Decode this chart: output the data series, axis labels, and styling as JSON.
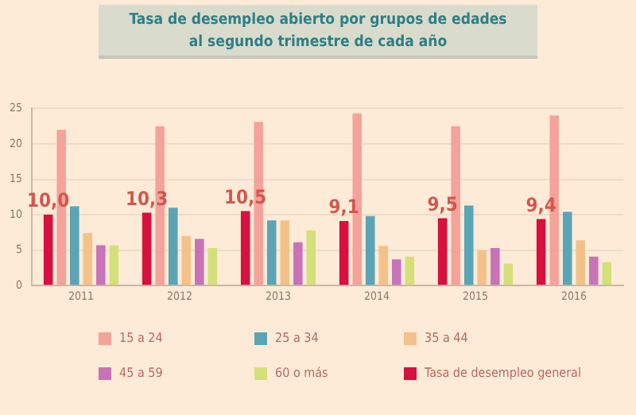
{
  "chart_data": {
    "type": "bar",
    "title": "Tasa de desempleo abierto por grupos de edades\nal segundo trimestre de cada año",
    "categories": [
      "2011",
      "2012",
      "2013",
      "2014",
      "2015",
      "2016"
    ],
    "series": [
      {
        "name": "Tasa de desempleo general",
        "color": "#d6103f",
        "values": [
          10.0,
          10.3,
          10.5,
          9.1,
          9.5,
          9.4
        ],
        "value_labels": [
          "10,0",
          "10,3",
          "10,5",
          "9,1",
          "9,5",
          "9,4"
        ]
      },
      {
        "name": "15 a 24",
        "color": "#f4a39a",
        "values": [
          22.0,
          22.5,
          23.1,
          24.3,
          22.5,
          24.0
        ]
      },
      {
        "name": "25 a 34",
        "color": "#5aa5b5",
        "values": [
          11.2,
          11.0,
          9.2,
          9.8,
          11.3,
          10.4
        ]
      },
      {
        "name": "35 a 44",
        "color": "#f2c28a",
        "values": [
          7.4,
          7.0,
          9.2,
          5.6,
          5.0,
          6.4
        ]
      },
      {
        "name": "45 a 59",
        "color": "#c873b8",
        "values": [
          5.7,
          6.6,
          6.1,
          3.7,
          5.3,
          4.1
        ]
      },
      {
        "name": "60 o más",
        "color": "#d4e07a",
        "values": [
          5.7,
          5.3,
          7.8,
          4.1,
          3.1,
          3.3
        ]
      }
    ],
    "ylim": [
      0,
      25
    ],
    "yticks": [
      0,
      5,
      10,
      15,
      20,
      25
    ],
    "grid": "y",
    "legend": "bottom"
  }
}
